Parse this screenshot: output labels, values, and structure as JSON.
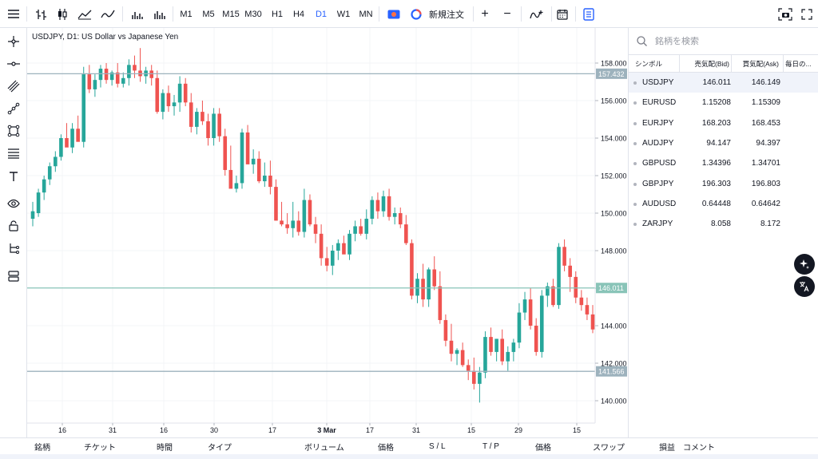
{
  "toolbar": {
    "timeframes": [
      {
        "label": "M1",
        "active": false
      },
      {
        "label": "M5",
        "active": false
      },
      {
        "label": "M15",
        "active": false
      },
      {
        "label": "M30",
        "active": false
      },
      {
        "label": "H1",
        "active": false
      },
      {
        "label": "H4",
        "active": false
      },
      {
        "label": "D1",
        "active": true
      },
      {
        "label": "W1",
        "active": false
      },
      {
        "label": "MN",
        "active": false
      }
    ],
    "new_order_label": "新規注文",
    "zoom_in_label": "+",
    "zoom_out_label": "−"
  },
  "chart": {
    "title": "USDJPY, D1: US Dollar vs Japanese Yen",
    "price_labels": [
      "158.000",
      "156.000",
      "154.000",
      "152.000",
      "150.000",
      "148.000",
      "146.000",
      "144.000",
      "142.000",
      "140.000"
    ],
    "date_labels": [
      "16",
      "31",
      "16",
      "30",
      "17",
      "3 Mar",
      "17",
      "31",
      "15",
      "29",
      "15"
    ],
    "lines": [
      {
        "label": "157.432",
        "value": 157.432,
        "color": "#9db2bd"
      },
      {
        "label": "146.011",
        "value": 146.011,
        "color": "#89c4b8"
      },
      {
        "label": "141.566",
        "value": 141.566,
        "color": "#9db2bd"
      }
    ],
    "colors": {
      "up": "#26a69a",
      "down": "#ef5350"
    }
  },
  "watchlist": {
    "search_placeholder": "銘柄を検索",
    "columns": [
      "シンボル",
      "売気配(Bid)",
      "買気配(Ask)",
      "毎日の..."
    ],
    "rows": [
      {
        "symbol": "USDJPY",
        "bid": "146.011",
        "ask": "146.149",
        "selected": true
      },
      {
        "symbol": "EURUSD",
        "bid": "1.15208",
        "ask": "1.15309",
        "selected": false
      },
      {
        "symbol": "EURJPY",
        "bid": "168.203",
        "ask": "168.453",
        "selected": false
      },
      {
        "symbol": "AUDJPY",
        "bid": "94.147",
        "ask": "94.397",
        "selected": false
      },
      {
        "symbol": "GBPUSD",
        "bid": "1.34396",
        "ask": "1.34701",
        "selected": false
      },
      {
        "symbol": "GBPJPY",
        "bid": "196.303",
        "ask": "196.803",
        "selected": false
      },
      {
        "symbol": "AUDUSD",
        "bid": "0.64448",
        "ask": "0.64642",
        "selected": false
      },
      {
        "symbol": "ZARJPY",
        "bid": "8.058",
        "ask": "8.172",
        "selected": false
      }
    ]
  },
  "bottom_panel": {
    "columns": [
      "銘柄",
      "チケット",
      "時間",
      "タイプ",
      "ボリューム",
      "価格",
      "S / L",
      "T / P",
      "価格",
      "スワップ",
      "損益",
      "コメント"
    ]
  }
}
